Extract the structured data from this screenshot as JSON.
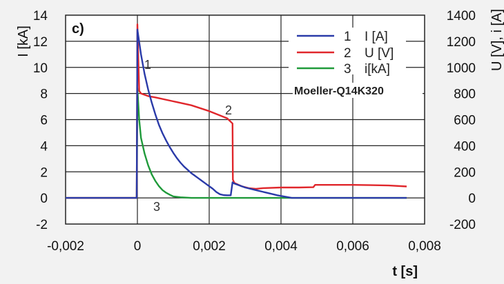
{
  "chart_data": {
    "type": "line",
    "panel_label": "c)",
    "annotation": "Moeller-Q14K320",
    "xlabel": "t [s]",
    "ylabel_left": "I [kA]",
    "ylabel_right": "U [V], i [A]",
    "xlim": [
      -0.002,
      0.008
    ],
    "ylim_left": [
      -2,
      14
    ],
    "ylim_right": [
      -200,
      1400
    ],
    "grid": true,
    "legend_position": "top-right",
    "x_ticks": [
      {
        "value": -0.002,
        "label": "-0,002"
      },
      {
        "value": 0,
        "label": "0"
      },
      {
        "value": 0.002,
        "label": "0,002"
      },
      {
        "value": 0.004,
        "label": "0,004"
      },
      {
        "value": 0.006,
        "label": "0,006"
      },
      {
        "value": 0.008,
        "label": "0,008"
      }
    ],
    "y_ticks_left": [
      {
        "value": -2,
        "label": "-2"
      },
      {
        "value": 0,
        "label": "0"
      },
      {
        "value": 2,
        "label": "2"
      },
      {
        "value": 4,
        "label": "4"
      },
      {
        "value": 6,
        "label": "6"
      },
      {
        "value": 8,
        "label": "8"
      },
      {
        "value": 10,
        "label": "10"
      },
      {
        "value": 12,
        "label": "12"
      },
      {
        "value": 14,
        "label": "14"
      }
    ],
    "y_ticks_right": [
      {
        "value": -200,
        "label": "-200"
      },
      {
        "value": 0,
        "label": "0"
      },
      {
        "value": 200,
        "label": "200"
      },
      {
        "value": 400,
        "label": "400"
      },
      {
        "value": 600,
        "label": "600"
      },
      {
        "value": 800,
        "label": "800"
      },
      {
        "value": 1000,
        "label": "1000"
      },
      {
        "value": 1200,
        "label": "1200"
      },
      {
        "value": 1400,
        "label": "1400"
      }
    ],
    "series": [
      {
        "number": "1",
        "legend_label": "I [A]",
        "color": "#2a3aa8",
        "axis": "right",
        "points": [
          [
            -0.002,
            0
          ],
          [
            -2e-05,
            0
          ],
          [
            0,
            1290
          ],
          [
            0.0001,
            1100
          ],
          [
            0.0002,
            950
          ],
          [
            0.0003,
            830
          ],
          [
            0.0004,
            730
          ],
          [
            0.0005,
            640
          ],
          [
            0.0006,
            560
          ],
          [
            0.0007,
            495
          ],
          [
            0.0008,
            440
          ],
          [
            0.0009,
            390
          ],
          [
            0.001,
            345
          ],
          [
            0.0011,
            305
          ],
          [
            0.0012,
            270
          ],
          [
            0.0013,
            240
          ],
          [
            0.0014,
            215
          ],
          [
            0.0015,
            190
          ],
          [
            0.0016,
            170
          ],
          [
            0.0017,
            150
          ],
          [
            0.0018,
            130
          ],
          [
            0.0019,
            110
          ],
          [
            0.002,
            90
          ],
          [
            0.0021,
            70
          ],
          [
            0.0022,
            45
          ],
          [
            0.0023,
            28
          ],
          [
            0.0024,
            22
          ],
          [
            0.0025,
            20
          ],
          [
            0.0026,
            20
          ],
          [
            0.00265,
            120
          ],
          [
            0.0027,
            110
          ],
          [
            0.003,
            80
          ],
          [
            0.0033,
            60
          ],
          [
            0.0036,
            40
          ],
          [
            0.0039,
            20
          ],
          [
            0.0041,
            10
          ],
          [
            0.0043,
            0
          ],
          [
            0.0075,
            0
          ]
        ]
      },
      {
        "number": "2",
        "legend_label": "U [V]",
        "color": "#e0262b",
        "axis": "right",
        "points": [
          [
            -0.002,
            0
          ],
          [
            -2e-05,
            0
          ],
          [
            0,
            1330
          ],
          [
            5e-05,
            820
          ],
          [
            0.0001,
            800
          ],
          [
            0.0003,
            780
          ],
          [
            0.0005,
            770
          ],
          [
            0.001,
            740
          ],
          [
            0.0015,
            710
          ],
          [
            0.002,
            665
          ],
          [
            0.0025,
            610
          ],
          [
            0.00265,
            570
          ],
          [
            0.00266,
            140
          ],
          [
            0.0027,
            115
          ],
          [
            0.0029,
            90
          ],
          [
            0.0031,
            75
          ],
          [
            0.0033,
            70
          ],
          [
            0.0035,
            75
          ],
          [
            0.004,
            80
          ],
          [
            0.0045,
            80
          ],
          [
            0.0049,
            82
          ],
          [
            0.00495,
            100
          ],
          [
            0.0055,
            100
          ],
          [
            0.006,
            100
          ],
          [
            0.0065,
            98
          ],
          [
            0.007,
            95
          ],
          [
            0.0075,
            88
          ]
        ]
      },
      {
        "number": "3",
        "legend_label": "i[kA]",
        "color": "#1f9a3a",
        "axis": "left",
        "points": [
          [
            -0.002,
            0
          ],
          [
            -2e-05,
            0
          ],
          [
            0,
            8.4
          ],
          [
            5e-05,
            6.0
          ],
          [
            0.0001,
            4.6
          ],
          [
            0.0002,
            3.4
          ],
          [
            0.0003,
            2.5
          ],
          [
            0.0004,
            1.8
          ],
          [
            0.0005,
            1.3
          ],
          [
            0.0006,
            0.9
          ],
          [
            0.0007,
            0.6
          ],
          [
            0.0008,
            0.4
          ],
          [
            0.0009,
            0.25
          ],
          [
            0.001,
            0.12
          ],
          [
            0.0012,
            0.05
          ],
          [
            0.0015,
            0
          ],
          [
            0.0075,
            0
          ]
        ]
      }
    ]
  }
}
